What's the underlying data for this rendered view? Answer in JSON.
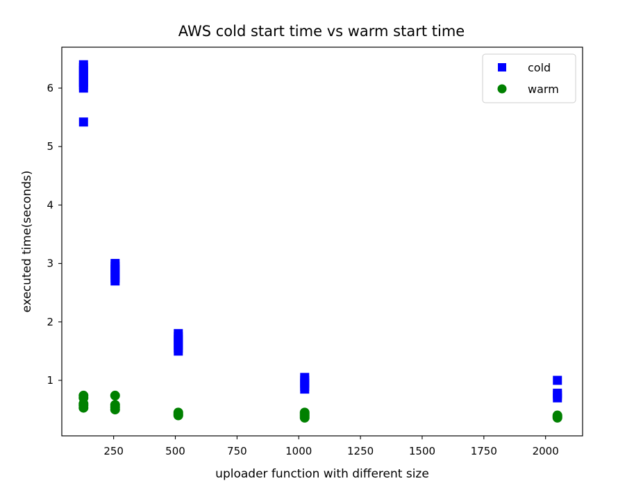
{
  "chart_data": {
    "type": "scatter",
    "title": "AWS cold start time vs warm start time",
    "xlabel": "uploader function with different size",
    "ylabel": "executed time(seconds)",
    "xlim": [
      40,
      2150
    ],
    "ylim": [
      0.05,
      6.7
    ],
    "xticks": [
      250,
      500,
      750,
      1000,
      1250,
      1500,
      1750,
      2000
    ],
    "yticks": [
      1,
      2,
      3,
      4,
      5,
      6
    ],
    "grid": false,
    "legend": {
      "placement": "top-right"
    },
    "series": [
      {
        "name": "cold",
        "marker": "square",
        "color": "#0000ff",
        "points": [
          [
            128,
            5.42
          ],
          [
            128,
            6.0
          ],
          [
            128,
            6.05
          ],
          [
            128,
            6.1
          ],
          [
            128,
            6.15
          ],
          [
            128,
            6.2
          ],
          [
            128,
            6.25
          ],
          [
            128,
            6.3
          ],
          [
            128,
            6.35
          ],
          [
            128,
            6.4
          ],
          [
            256,
            2.7
          ],
          [
            256,
            2.75
          ],
          [
            256,
            2.8
          ],
          [
            256,
            2.85
          ],
          [
            256,
            2.9
          ],
          [
            256,
            2.95
          ],
          [
            256,
            3.0
          ],
          [
            512,
            1.5
          ],
          [
            512,
            1.55
          ],
          [
            512,
            1.6
          ],
          [
            512,
            1.65
          ],
          [
            512,
            1.7
          ],
          [
            512,
            1.75
          ],
          [
            512,
            1.8
          ],
          [
            1024,
            0.85
          ],
          [
            1024,
            0.9
          ],
          [
            1024,
            0.95
          ],
          [
            1024,
            1.0
          ],
          [
            1024,
            1.05
          ],
          [
            2048,
            0.7
          ],
          [
            2048,
            0.75
          ],
          [
            2048,
            0.78
          ],
          [
            2048,
            1.0
          ]
        ]
      },
      {
        "name": "warm",
        "marker": "circle",
        "color": "#008000",
        "points": [
          [
            128,
            0.53
          ],
          [
            128,
            0.57
          ],
          [
            128,
            0.6
          ],
          [
            128,
            0.7
          ],
          [
            128,
            0.74
          ],
          [
            256,
            0.5
          ],
          [
            256,
            0.54
          ],
          [
            256,
            0.58
          ],
          [
            256,
            0.74
          ],
          [
            512,
            0.4
          ],
          [
            512,
            0.42
          ],
          [
            512,
            0.45
          ],
          [
            1024,
            0.36
          ],
          [
            1024,
            0.39
          ],
          [
            1024,
            0.42
          ],
          [
            1024,
            0.45
          ],
          [
            2048,
            0.36
          ],
          [
            2048,
            0.38
          ],
          [
            2048,
            0.4
          ]
        ]
      }
    ]
  }
}
